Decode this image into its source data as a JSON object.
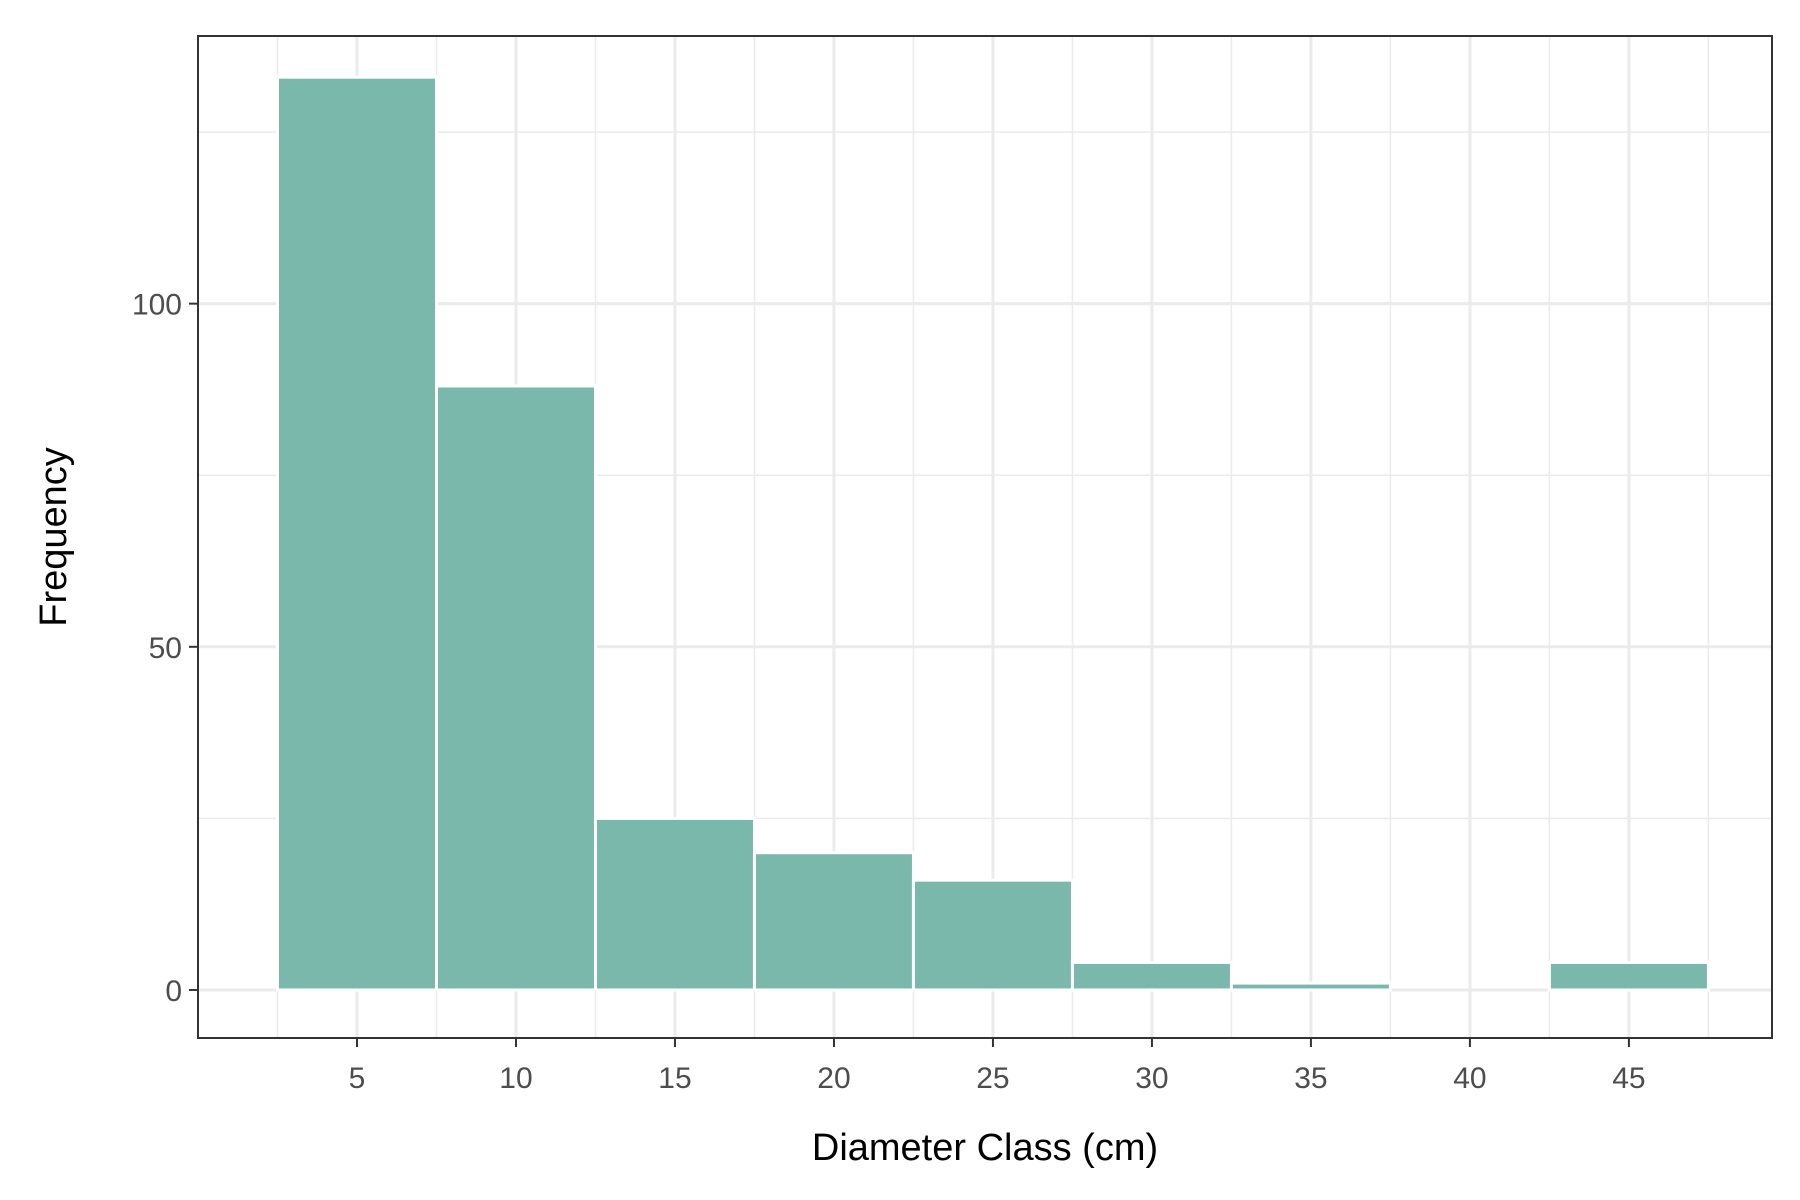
{
  "chart_data": {
    "type": "bar",
    "subtype": "histogram",
    "title": "",
    "xlabel": "Diameter Class (cm)",
    "ylabel": "Frequency",
    "bin_width": 5,
    "bins": [
      {
        "center": 5,
        "count": 133
      },
      {
        "center": 10,
        "count": 88
      },
      {
        "center": 15,
        "count": 25
      },
      {
        "center": 20,
        "count": 20
      },
      {
        "center": 25,
        "count": 16
      },
      {
        "center": 30,
        "count": 4
      },
      {
        "center": 35,
        "count": 1
      },
      {
        "center": 40,
        "count": 0
      },
      {
        "center": 45,
        "count": 4
      }
    ],
    "xlim": [
      0,
      49.5
    ],
    "ylim": [
      -7,
      139
    ],
    "x_ticks": [
      5,
      10,
      15,
      20,
      25,
      30,
      35,
      40,
      45
    ],
    "y_ticks": [
      0,
      50,
      100
    ],
    "y_minor_ticks": [
      25,
      75,
      125
    ],
    "grid": true,
    "legend": "none",
    "colors": {
      "bar_fill": "#7ab8ac",
      "bar_stroke": "#ffffff",
      "grid": "#ebebeb",
      "panel_border": "#333333",
      "tick_text": "#4d4d4d",
      "title_text": "#000000"
    }
  }
}
